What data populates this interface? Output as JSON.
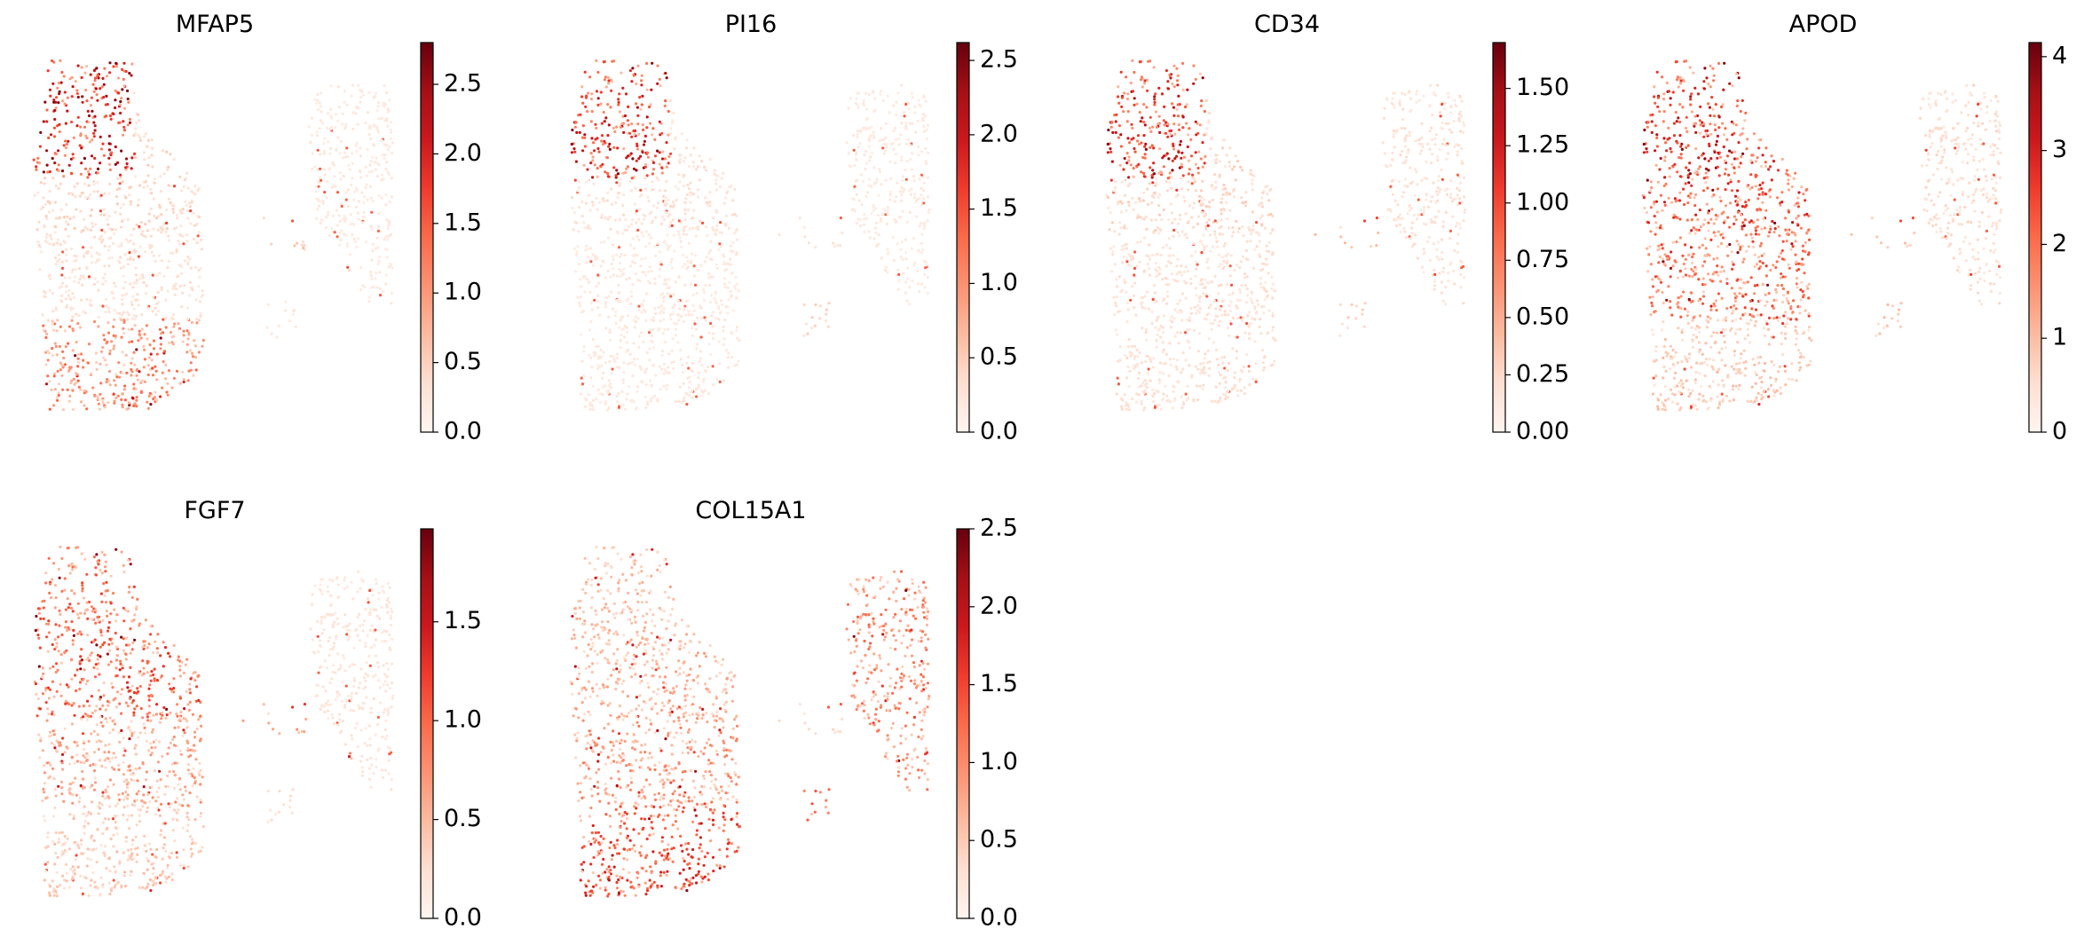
{
  "figure": {
    "description_type": "umap-feature-grid"
  },
  "colormap": {
    "name": "Reds",
    "stops": [
      "#fff5f0",
      "#fee0d2",
      "#fcbba1",
      "#fc9272",
      "#fb6a4a",
      "#ef3b2c",
      "#cb181d",
      "#a50f15",
      "#67000d"
    ]
  },
  "chart_data": [
    {
      "type": "scatter",
      "title": "MFAP5",
      "colorbar": {
        "min": 0,
        "max": 2.8,
        "ticks": [
          0.0,
          0.5,
          1.0,
          1.5,
          2.0,
          2.5
        ],
        "tick_labels": [
          "0.0",
          "0.5",
          "1.0",
          "1.5",
          "2.0",
          "2.5"
        ]
      },
      "regions": {
        "tl": 0.85,
        "center": 0.1,
        "top": 0.15,
        "bottom": 0.45,
        "bridge": 0.2,
        "right": 0.05,
        "tip": 0.1,
        "small": 0.05
      }
    },
    {
      "type": "scatter",
      "title": "PI16",
      "colorbar": {
        "min": 0,
        "max": 2.62,
        "ticks": [
          0.0,
          0.5,
          1.0,
          1.5,
          2.0,
          2.5
        ],
        "tick_labels": [
          "0.0",
          "0.5",
          "1.0",
          "1.5",
          "2.0",
          "2.5"
        ]
      },
      "regions": {
        "tl": 0.75,
        "center": 0.05,
        "top": 0.1,
        "bottom": 0.05,
        "bridge": 0.1,
        "right": 0.05,
        "tip": 0.05,
        "small": 0.15
      }
    },
    {
      "type": "scatter",
      "title": "CD34",
      "colorbar": {
        "min": 0,
        "max": 1.7,
        "ticks": [
          0.0,
          0.25,
          0.5,
          0.75,
          1.0,
          1.25,
          1.5
        ],
        "tick_labels": [
          "0.00",
          "0.25",
          "0.50",
          "0.75",
          "1.00",
          "1.25",
          "1.50"
        ]
      },
      "regions": {
        "tl": 0.75,
        "center": 0.1,
        "top": 0.15,
        "bottom": 0.1,
        "bridge": 0.3,
        "right": 0.1,
        "tip": 0.1,
        "small": 0.15
      }
    },
    {
      "type": "scatter",
      "title": "APOD",
      "colorbar": {
        "min": 0,
        "max": 4.15,
        "ticks": [
          0,
          1,
          2,
          3,
          4
        ],
        "tick_labels": [
          "0",
          "1",
          "2",
          "3",
          "4"
        ]
      },
      "regions": {
        "tl": 0.75,
        "center": 0.55,
        "top": 0.65,
        "bottom": 0.2,
        "bridge": 0.25,
        "right": 0.12,
        "tip": 0.1,
        "small": 0.2
      }
    },
    {
      "type": "scatter",
      "title": "FGF7",
      "colorbar": {
        "min": 0,
        "max": 1.97,
        "ticks": [
          0.0,
          0.5,
          1.0,
          1.5
        ],
        "tick_labels": [
          "0.0",
          "0.5",
          "1.0",
          "1.5"
        ]
      },
      "regions": {
        "tl": 0.55,
        "center": 0.35,
        "top": 0.6,
        "bottom": 0.2,
        "bridge": 0.4,
        "right": 0.08,
        "tip": 0.65,
        "small": 0.1
      }
    },
    {
      "type": "scatter",
      "title": "COL15A1",
      "colorbar": {
        "min": 0,
        "max": 2.5,
        "ticks": [
          0.0,
          0.5,
          1.0,
          1.5,
          2.0,
          2.5
        ],
        "tick_labels": [
          "0.0",
          "0.5",
          "1.0",
          "1.5",
          "2.0",
          "2.5"
        ]
      },
      "regions": {
        "tl": 0.25,
        "center": 0.4,
        "top": 0.3,
        "bottom": 0.65,
        "bridge": 0.15,
        "right": 0.45,
        "tip": 0.3,
        "small": 0.5
      }
    }
  ]
}
